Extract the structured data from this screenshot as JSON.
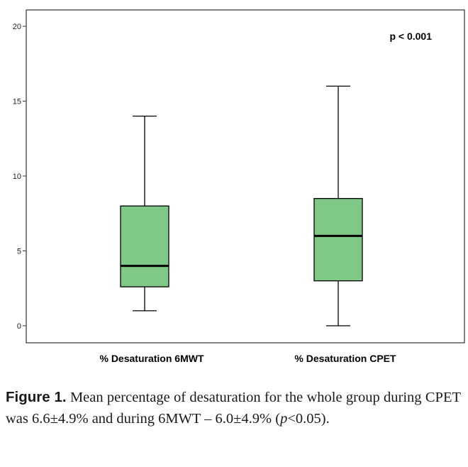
{
  "chart_data": {
    "type": "boxplot",
    "annotation": "p < 0.001",
    "ylim": [
      0,
      20
    ],
    "yticks": [
      0,
      5,
      10,
      15,
      20
    ],
    "categories": [
      "% Desaturation 6MWT",
      "% Desaturation CPET"
    ],
    "boxes": [
      {
        "category": "% Desaturation 6MWT",
        "min": 1,
        "q1": 2.6,
        "median": 4,
        "q3": 8,
        "max": 14
      },
      {
        "category": "% Desaturation CPET",
        "min": 0,
        "q1": 3,
        "median": 6,
        "q3": 8.5,
        "max": 16
      }
    ],
    "box_color": "#7fc886",
    "grid": false
  },
  "caption": {
    "label": "Figure 1.",
    "text_before": " Mean percentage of desaturation for the whole group during CPET was 6.6±4.9% and during 6MWT – 6.0±4.9% (",
    "p_symbol": "p",
    "text_after": "<0.05)."
  }
}
